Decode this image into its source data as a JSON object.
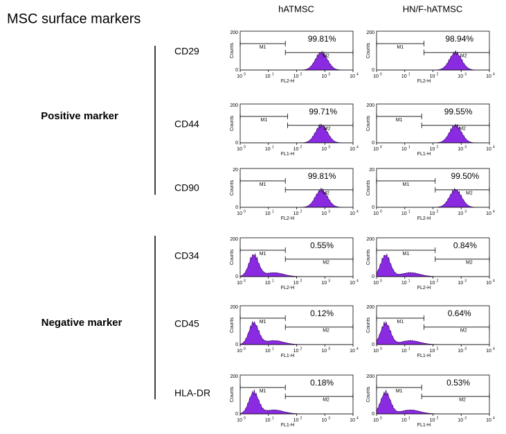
{
  "title": "MSC surface markers",
  "columns": [
    "hATMSC",
    "HN/F-hATMSC"
  ],
  "axis": {
    "y_label": "Counts",
    "y_min": "0",
    "x_base": "10",
    "x_exponents": [
      "0",
      "1",
      "2",
      "3",
      "4"
    ],
    "gates": [
      "M1",
      "M2"
    ]
  },
  "groups": [
    {
      "label": "Positive marker",
      "rows": [
        {
          "marker": "CD29",
          "panels": [
            {
              "percent": "99.81%",
              "channel": "FL2-H",
              "y_max": "200"
            },
            {
              "percent": "98.94%",
              "channel": "FL2-H",
              "y_max": "200"
            }
          ]
        },
        {
          "marker": "CD44",
          "panels": [
            {
              "percent": "99.71%",
              "channel": "FL1-H",
              "y_max": "200"
            },
            {
              "percent": "99.55%",
              "channel": "FL1-H",
              "y_max": "200"
            }
          ]
        },
        {
          "marker": "CD90",
          "panels": [
            {
              "percent": "99.81%",
              "channel": "FL2-H",
              "y_max": "20"
            },
            {
              "percent": "99.50%",
              "channel": "FL2-H",
              "y_max": "20"
            }
          ]
        }
      ]
    },
    {
      "label": "Negative marker",
      "rows": [
        {
          "marker": "CD34",
          "panels": [
            {
              "percent": "0.55%",
              "channel": "FL2-H",
              "y_max": "200"
            },
            {
              "percent": "0.84%",
              "channel": "FL2-H",
              "y_max": "200"
            }
          ]
        },
        {
          "marker": "CD45",
          "panels": [
            {
              "percent": "0.12%",
              "channel": "FL1-H",
              "y_max": "200"
            },
            {
              "percent": "0.64%",
              "channel": "FL1-H",
              "y_max": "200"
            }
          ]
        },
        {
          "marker": "HLA-DR",
          "panels": [
            {
              "percent": "0.18%",
              "channel": "FL1-H",
              "y_max": "200"
            },
            {
              "percent": "0.53%",
              "channel": "FL1-H",
              "y_max": "200"
            }
          ]
        }
      ]
    }
  ]
}
